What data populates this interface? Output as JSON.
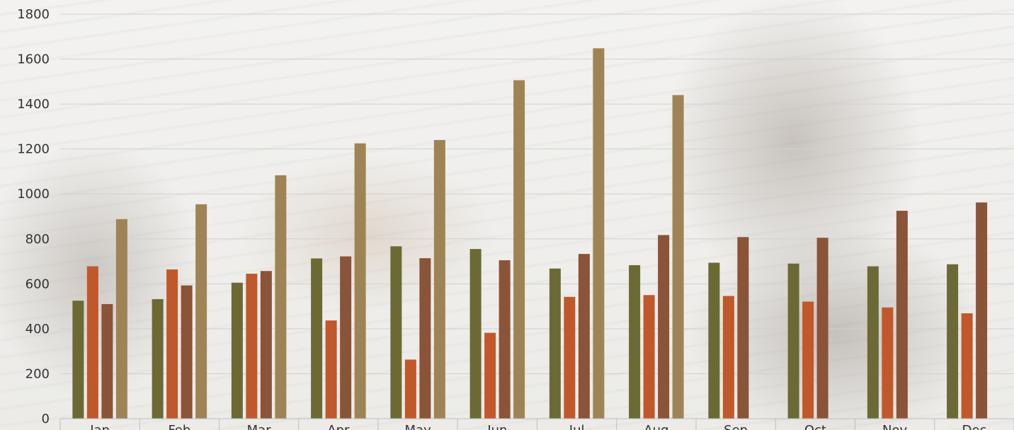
{
  "chart_data": {
    "type": "bar",
    "categories": [
      "Jan",
      "Feb",
      "Mar",
      "Apr",
      "May",
      "Jun",
      "Jul",
      "Aug",
      "Sep",
      "Oct",
      "Nov",
      "Dec"
    ],
    "series": [
      {
        "color": "#6b6a35",
        "values": [
          525,
          532,
          605,
          713,
          767,
          755,
          668,
          683,
          694,
          690,
          678,
          687
        ]
      },
      {
        "color": "#c0582b",
        "values": [
          678,
          664,
          645,
          437,
          263,
          382,
          542,
          550,
          546,
          521,
          495,
          469
        ]
      },
      {
        "color": "#8b5338",
        "values": [
          510,
          593,
          657,
          722,
          714,
          705,
          733,
          817,
          808,
          805,
          925,
          962
        ]
      },
      {
        "color": "#9e8455",
        "values": [
          888,
          954,
          1083,
          1225,
          1240,
          1506,
          1648,
          1440,
          null,
          null,
          null,
          null
        ]
      }
    ],
    "yticks": [
      0,
      200,
      400,
      600,
      800,
      1000,
      1200,
      1400,
      1600,
      1800
    ],
    "ylim": [
      0,
      1800
    ],
    "grid": true,
    "title": "",
    "xlabel": "",
    "ylabel": ""
  }
}
